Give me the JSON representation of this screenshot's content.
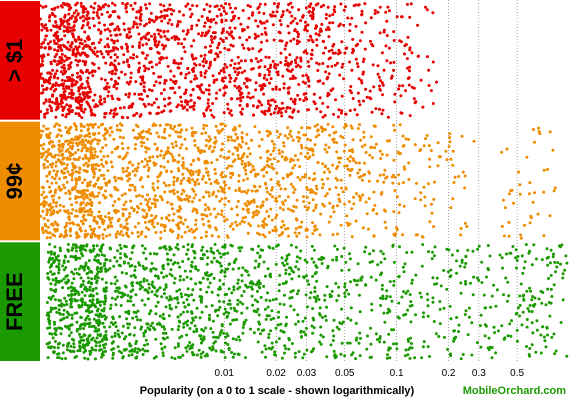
{
  "chart_data": {
    "type": "scatter",
    "title": "",
    "xlabel": "Popularity (on a 0 to 1 scale - shown logarithmically)",
    "ylabel": "",
    "x_scale": "log",
    "xlim": [
      0.0005,
      1
    ],
    "x_ticks": [
      0.01,
      0.02,
      0.03,
      0.05,
      0.1,
      0.2,
      0.3,
      0.5
    ],
    "x_tick_labels": [
      "0.01",
      "0.02",
      "0.03",
      "0.05",
      "0.1",
      "0.2",
      "0.3",
      "0.5"
    ],
    "grid": {
      "x": true,
      "y": false,
      "style": "dotted"
    },
    "legend": "none",
    "credit": "MobileOrchard.com",
    "credit_color": "#1a9a00",
    "categories": [
      "> $1",
      "99¢",
      "FREE"
    ],
    "series": [
      {
        "name": "> $1",
        "color": "#e80000",
        "x": [
          0.0011,
          0.0016,
          0.0024,
          0.0033,
          0.0045,
          0.0058,
          0.0071,
          0.0086,
          0.011,
          0.013,
          0.016,
          0.019,
          0.023,
          0.027,
          0.031,
          0.036,
          0.045,
          0.06,
          0.082,
          0.12
        ]
      },
      {
        "name": "99¢",
        "color": "#f08c00",
        "x": [
          0.0012,
          0.0019,
          0.0027,
          0.0038,
          0.0052,
          0.0066,
          0.0081,
          0.0097,
          0.012,
          0.015,
          0.018,
          0.022,
          0.026,
          0.031,
          0.037,
          0.045,
          0.055,
          0.075,
          0.11,
          0.19,
          0.6
        ]
      },
      {
        "name": "FREE",
        "color": "#1a9a00",
        "x": [
          0.0014,
          0.0021,
          0.0031,
          0.0043,
          0.0057,
          0.0072,
          0.0088,
          0.011,
          0.014,
          0.018,
          0.023,
          0.029,
          0.037,
          0.048,
          0.063,
          0.085,
          0.12,
          0.17,
          0.25,
          0.34,
          0.46,
          0.62,
          0.8,
          0.95
        ]
      }
    ]
  }
}
